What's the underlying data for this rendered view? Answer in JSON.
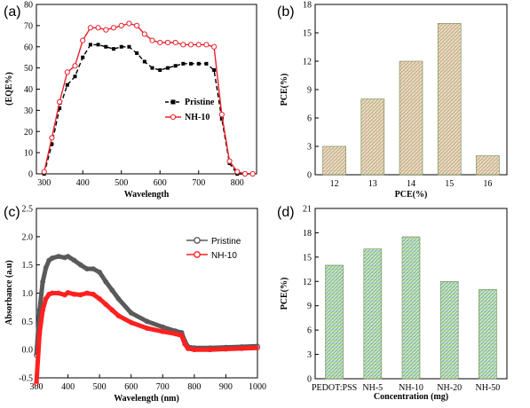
{
  "chart_data": [
    {
      "id": "a",
      "panel_label": "(a)",
      "type": "line",
      "xlabel": "Wavelength",
      "ylabel": "(EQE%)",
      "xlim": [
        280,
        850
      ],
      "ylim": [
        0,
        80
      ],
      "xticks": [
        300,
        400,
        500,
        600,
        700,
        800
      ],
      "yticks": [
        0,
        10,
        20,
        30,
        40,
        50,
        60,
        70,
        80
      ],
      "grid": false,
      "legend_position": "lower-right",
      "series": [
        {
          "name": "Pristine",
          "color": "#000000",
          "style": "dash-square-markers",
          "x": [
            300,
            320,
            340,
            360,
            380,
            400,
            420,
            440,
            460,
            480,
            500,
            520,
            540,
            560,
            580,
            600,
            620,
            640,
            660,
            680,
            700,
            720,
            740,
            760,
            780,
            800,
            820,
            840
          ],
          "y": [
            0,
            14,
            31,
            42,
            46,
            55,
            61,
            61,
            60,
            59,
            60,
            60,
            57,
            53,
            50,
            49,
            50,
            51,
            52,
            52,
            52,
            52,
            49,
            26,
            5,
            0,
            0,
            0
          ]
        },
        {
          "name": "NH-10",
          "color": "#e8202a",
          "style": "solid-circle-markers",
          "x": [
            300,
            320,
            340,
            360,
            380,
            400,
            420,
            440,
            460,
            480,
            500,
            520,
            540,
            560,
            580,
            600,
            620,
            640,
            660,
            680,
            700,
            720,
            740,
            760,
            780,
            800,
            820,
            840
          ],
          "y": [
            1,
            17,
            34,
            48,
            51,
            63,
            69,
            69,
            68,
            69,
            70,
            71,
            70,
            66,
            63,
            62,
            62,
            62,
            61,
            61,
            61,
            61,
            60,
            28,
            6,
            1,
            0,
            0
          ]
        }
      ]
    },
    {
      "id": "b",
      "panel_label": "(b)",
      "type": "bar",
      "xlabel": "PCE(%)",
      "ylabel": "PCE(%)",
      "categories": [
        "12",
        "13",
        "14",
        "15",
        "16"
      ],
      "values": [
        3,
        8,
        12,
        16,
        2
      ],
      "ylim": [
        0,
        18
      ],
      "yticks": [
        0,
        3,
        6,
        9,
        12,
        15,
        18
      ],
      "grid": false,
      "bar_fill": "gradient-pink-green-hatched"
    },
    {
      "id": "c",
      "panel_label": "(c)",
      "type": "line",
      "xlabel": "Wavelength (nm)",
      "ylabel": "Absorbance (a.u)",
      "xlim": [
        300,
        1000
      ],
      "ylim": [
        -0.5,
        2.5
      ],
      "xticks": [
        300,
        400,
        500,
        600,
        700,
        800,
        900,
        1000
      ],
      "yticks": [
        -0.5,
        0.0,
        0.5,
        1.0,
        1.5,
        2.0,
        2.5
      ],
      "ytick_labels": [
        "-0.5",
        "0.0",
        "0.5",
        "1.0",
        "1.5",
        "2.0",
        "2.5"
      ],
      "grid": false,
      "legend_position": "top-right",
      "series": [
        {
          "name": "Pristine",
          "color": "#5a5a5a",
          "style": "dense-circle-markers",
          "x": [
            300,
            310,
            320,
            330,
            340,
            350,
            370,
            390,
            400,
            420,
            440,
            460,
            480,
            500,
            520,
            540,
            560,
            600,
            650,
            700,
            740,
            760,
            770,
            780,
            800,
            850,
            900,
            950,
            1000
          ],
          "y": [
            -0.1,
            0.7,
            1.2,
            1.45,
            1.58,
            1.62,
            1.65,
            1.63,
            1.65,
            1.58,
            1.5,
            1.43,
            1.43,
            1.37,
            1.2,
            1.05,
            0.9,
            0.65,
            0.5,
            0.4,
            0.33,
            0.3,
            0.15,
            0.05,
            0.03,
            0.03,
            0.04,
            0.05,
            0.06
          ]
        },
        {
          "name": "NH-10",
          "color": "#ff2020",
          "style": "dense-circle-markers",
          "x": [
            300,
            310,
            320,
            330,
            340,
            350,
            370,
            390,
            400,
            420,
            440,
            460,
            480,
            500,
            520,
            540,
            560,
            600,
            650,
            700,
            740,
            760,
            770,
            780,
            800,
            850,
            900,
            950,
            1000
          ],
          "y": [
            -0.6,
            0.3,
            0.7,
            0.9,
            0.98,
            1.0,
            1.0,
            0.97,
            1.01,
            0.98,
            0.97,
            1.0,
            0.98,
            0.9,
            0.8,
            0.7,
            0.6,
            0.48,
            0.38,
            0.32,
            0.28,
            0.25,
            0.1,
            0.02,
            0.0,
            0.0,
            0.01,
            0.02,
            0.03
          ]
        }
      ]
    },
    {
      "id": "d",
      "panel_label": "(d)",
      "type": "bar",
      "xlabel": "Concentration (mg)",
      "ylabel": "PCE(%)",
      "categories": [
        "PEDOT:PSS",
        "NH-5",
        "NH-10",
        "NH-20",
        "NH-50"
      ],
      "values": [
        14,
        16,
        17.5,
        12,
        11
      ],
      "ylim": [
        0,
        21
      ],
      "yticks": [
        0,
        3,
        6,
        9,
        12,
        15,
        18,
        21
      ],
      "grid": false,
      "bar_fill": "gradient-green-blue-hatched"
    }
  ]
}
